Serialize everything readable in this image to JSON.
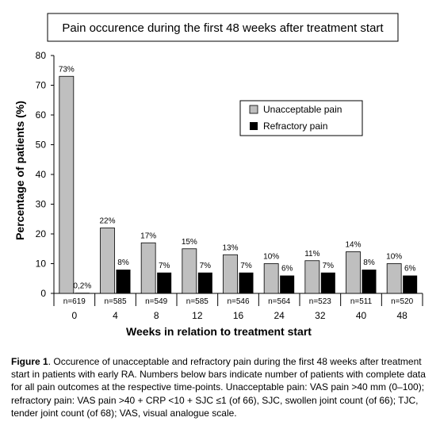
{
  "chart_data": {
    "type": "bar",
    "title": "Pain occurence during the first 48 weeks after treatment  start",
    "xlabel": "Weeks in relation to treatment start",
    "ylabel": "Percentage of patients (%)",
    "ylim": [
      0,
      80
    ],
    "yticks": [
      "0",
      "10",
      "20",
      "30",
      "40",
      "50",
      "60",
      "70",
      "80"
    ],
    "grid": false,
    "legend_position": "top-right",
    "categories": [
      "0",
      "4",
      "8",
      "12",
      "16",
      "24",
      "32",
      "40",
      "48"
    ],
    "n_labels": [
      "n=619",
      "n=585",
      "n=549",
      "n=585",
      "n=546",
      "n=564",
      "n=523",
      "n=511",
      "n=520"
    ],
    "series": [
      {
        "name": "Unacceptable pain",
        "color": "#bfbfbf",
        "values": [
          73,
          22,
          17,
          15,
          13,
          10,
          11,
          14,
          10
        ],
        "labels": [
          "73%",
          "22%",
          "17%",
          "15%",
          "13%",
          "10%",
          "11%",
          "14%",
          "10%"
        ]
      },
      {
        "name": "Refractory pain",
        "color": "#000000",
        "values": [
          0.2,
          8,
          7,
          7,
          7,
          6,
          7,
          8,
          6
        ],
        "labels": [
          "0,2%",
          "8%",
          "7%",
          "7%",
          "7%",
          "6%",
          "7%",
          "8%",
          "6%"
        ]
      }
    ]
  },
  "caption": {
    "label": "Figure 1",
    "text": ". Occurence of unacceptable and refractory pain during the first 48 weeks after treatment start in patients with early RA. Numbers below bars indicate number of patients with complete data for all pain outcomes at the respective time-points. Unacceptable pain: VAS pain >40 mm (0–100); refractory pain: VAS pain >40 + CRP  <10 + SJC ≤1 (of 66), SJC,  swollen joint count (of 66); TJC, tender joint count (of 68); VAS, visual analogue scale."
  }
}
